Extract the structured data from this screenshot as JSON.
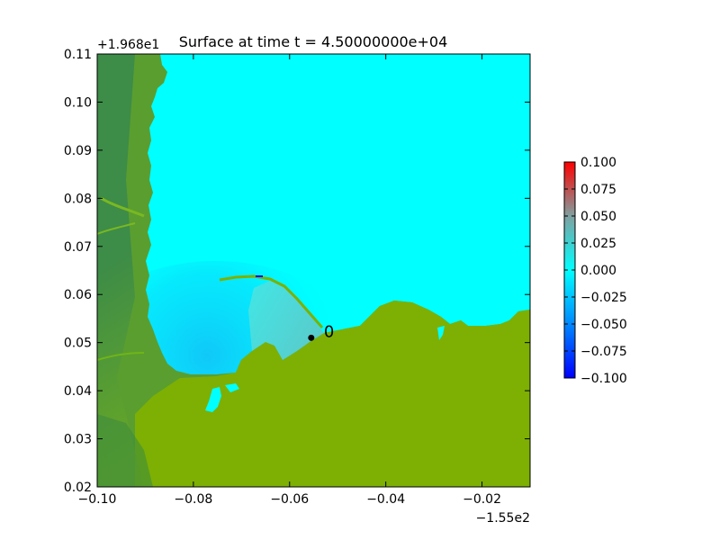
{
  "chart_data": {
    "type": "heatmap",
    "title": "Surface at time t = 4.50000000e+04",
    "x_offset_label": "−1.55e2",
    "y_offset_label": "+1.968e1",
    "xlim": [
      -0.1,
      -0.01
    ],
    "ylim": [
      0.02,
      0.11
    ],
    "x_ticks": [
      "−0.10",
      "−0.08",
      "−0.06",
      "−0.04",
      "−0.02"
    ],
    "x_tick_values": [
      -0.1,
      -0.08,
      -0.06,
      -0.04,
      -0.02
    ],
    "y_ticks": [
      "0.02",
      "0.03",
      "0.04",
      "0.05",
      "0.06",
      "0.07",
      "0.08",
      "0.09",
      "0.10",
      "0.11"
    ],
    "y_tick_values": [
      0.02,
      0.03,
      0.04,
      0.05,
      0.06,
      0.07,
      0.08,
      0.09,
      0.1,
      0.11
    ],
    "colorbar": {
      "vmin": -0.1,
      "vmax": 0.1,
      "tick_values": [
        0.1,
        0.075,
        0.05,
        0.025,
        0.0,
        -0.025,
        -0.05,
        -0.075,
        -0.1
      ],
      "tick_labels": [
        "0.100",
        "0.075",
        "0.050",
        "0.025",
        "0.000",
        "−0.025",
        "−0.050",
        "−0.075",
        "−0.100"
      ],
      "colors": [
        "#0000ff",
        "#00ffff",
        "#ff0000"
      ]
    },
    "gauge": {
      "x": -0.0555,
      "y": 0.051,
      "label": "0"
    },
    "land_color": "#80b000",
    "land_dark_color": "#3a8a40",
    "water_color": "#00ffff",
    "grid": false,
    "legend": "none"
  }
}
